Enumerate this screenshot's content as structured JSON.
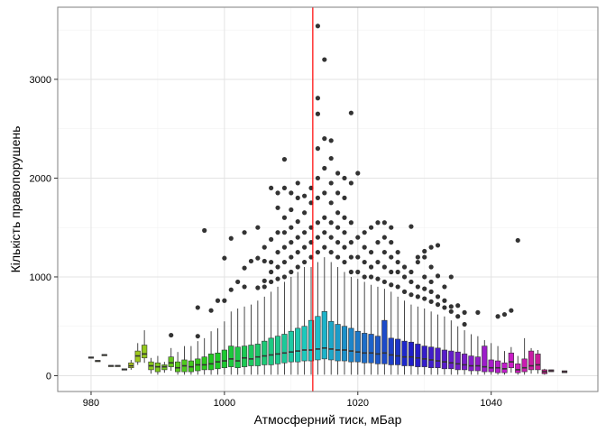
{
  "chart_data": {
    "type": "boxplot",
    "xlabel": "Атмосферний тиск, мБар",
    "ylabel": "Кількість правопорушень",
    "xlim": [
      975,
      1056
    ],
    "ylim": [
      -160,
      3730
    ],
    "x_ticks": [
      980,
      1000,
      1020,
      1040
    ],
    "y_ticks": [
      0,
      1000,
      2000,
      3000
    ],
    "grid": true,
    "legend": "none",
    "reference_line": {
      "x": 1013.25,
      "color": "#ff0000"
    },
    "colors": {
      "box_start": "#c89a00",
      "box_mid": "#00b2c8",
      "box_end": "#ff63b4"
    },
    "boxes": [
      {
        "x": 980,
        "q1": 180,
        "median": 185,
        "q3": 190,
        "lo": 180,
        "hi": 190
      },
      {
        "x": 981,
        "q1": 145,
        "median": 150,
        "q3": 155,
        "lo": 145,
        "hi": 155
      },
      {
        "x": 982,
        "q1": 205,
        "median": 210,
        "q3": 215,
        "lo": 205,
        "hi": 215
      },
      {
        "x": 983,
        "q1": 95,
        "median": 100,
        "q3": 105,
        "lo": 95,
        "hi": 105
      },
      {
        "x": 984,
        "q1": 95,
        "median": 100,
        "q3": 105,
        "lo": 95,
        "hi": 105
      },
      {
        "x": 985,
        "q1": 60,
        "median": 65,
        "q3": 70,
        "lo": 60,
        "hi": 70
      },
      {
        "x": 986,
        "q1": 80,
        "median": 100,
        "q3": 130,
        "lo": 60,
        "hi": 160
      },
      {
        "x": 987,
        "q1": 140,
        "median": 200,
        "q3": 250,
        "lo": 110,
        "hi": 330
      },
      {
        "x": 988,
        "q1": 180,
        "median": 220,
        "q3": 310,
        "lo": 130,
        "hi": 460
      },
      {
        "x": 989,
        "q1": 60,
        "median": 100,
        "q3": 140,
        "lo": 20,
        "hi": 180
      },
      {
        "x": 990,
        "q1": 40,
        "median": 90,
        "q3": 130,
        "lo": 10,
        "hi": 200
      },
      {
        "x": 991,
        "q1": 60,
        "median": 90,
        "q3": 110,
        "lo": 30,
        "hi": 140
      },
      {
        "x": 992,
        "q1": 90,
        "median": 130,
        "q3": 190,
        "lo": 50,
        "hi": 280,
        "outliers": [
          410
        ]
      },
      {
        "x": 993,
        "q1": 40,
        "median": 80,
        "q3": 140,
        "lo": 10,
        "hi": 240
      },
      {
        "x": 994,
        "q1": 40,
        "median": 100,
        "q3": 160,
        "lo": 10,
        "hi": 300
      },
      {
        "x": 995,
        "q1": 40,
        "median": 90,
        "q3": 150,
        "lo": 10,
        "hi": 300
      },
      {
        "x": 996,
        "q1": 50,
        "median": 110,
        "q3": 170,
        "lo": 10,
        "hi": 350,
        "outliers": [
          400,
          690
        ]
      },
      {
        "x": 997,
        "q1": 60,
        "median": 110,
        "q3": 190,
        "lo": 10,
        "hi": 380,
        "outliers": [
          1470
        ]
      },
      {
        "x": 998,
        "q1": 60,
        "median": 120,
        "q3": 220,
        "lo": 10,
        "hi": 450,
        "outliers": [
          660
        ]
      },
      {
        "x": 999,
        "q1": 70,
        "median": 140,
        "q3": 230,
        "lo": 10,
        "hi": 480,
        "outliers": [
          760
        ]
      },
      {
        "x": 1000,
        "q1": 80,
        "median": 150,
        "q3": 260,
        "lo": 10,
        "hi": 550,
        "outliers": [
          760,
          1190
        ]
      },
      {
        "x": 1001,
        "q1": 90,
        "median": 170,
        "q3": 300,
        "lo": 10,
        "hi": 650,
        "outliers": [
          870,
          1390
        ]
      },
      {
        "x": 1002,
        "q1": 80,
        "median": 150,
        "q3": 290,
        "lo": 10,
        "hi": 680,
        "outliers": [
          950
        ]
      },
      {
        "x": 1003,
        "q1": 90,
        "median": 180,
        "q3": 300,
        "lo": 10,
        "hi": 700,
        "outliers": [
          900,
          1090,
          1450
        ]
      },
      {
        "x": 1004,
        "q1": 100,
        "median": 170,
        "q3": 310,
        "lo": 10,
        "hi": 720,
        "outliers": [
          1160
        ]
      },
      {
        "x": 1005,
        "q1": 100,
        "median": 190,
        "q3": 320,
        "lo": 10,
        "hi": 760,
        "outliers": [
          890,
          1190,
          1500
        ]
      },
      {
        "x": 1006,
        "q1": 110,
        "median": 200,
        "q3": 350,
        "lo": 10,
        "hi": 800,
        "outliers": [
          900,
          960,
          1160,
          1300
        ]
      },
      {
        "x": 1007,
        "q1": 110,
        "median": 210,
        "q3": 380,
        "lo": 10,
        "hi": 850,
        "outliers": [
          950,
          1050,
          1150,
          1380,
          1900
        ]
      },
      {
        "x": 1008,
        "q1": 120,
        "median": 220,
        "q3": 400,
        "lo": 10,
        "hi": 900,
        "outliers": [
          980,
          1100,
          1250,
          1450,
          1700,
          1850
        ]
      },
      {
        "x": 1009,
        "q1": 130,
        "median": 230,
        "q3": 420,
        "lo": 10,
        "hi": 950,
        "outliers": [
          1000,
          1150,
          1300,
          1450,
          1600,
          1900,
          2190
        ]
      },
      {
        "x": 1010,
        "q1": 140,
        "median": 240,
        "q3": 450,
        "lo": 10,
        "hi": 1000,
        "outliers": [
          1050,
          1200,
          1350,
          1500,
          1680,
          1850
        ]
      },
      {
        "x": 1011,
        "q1": 140,
        "median": 250,
        "q3": 480,
        "lo": 10,
        "hi": 1050,
        "outliers": [
          1100,
          1250,
          1400,
          1560,
          1800,
          1950
        ]
      },
      {
        "x": 1012,
        "q1": 150,
        "median": 260,
        "q3": 500,
        "lo": 10,
        "hi": 1100,
        "outliers": [
          1150,
          1300,
          1450,
          1650,
          1820
        ]
      },
      {
        "x": 1013,
        "q1": 150,
        "median": 260,
        "q3": 560,
        "lo": 10,
        "hi": 1100,
        "outliers": [
          1200,
          1350,
          1500,
          1750,
          1900
        ]
      },
      {
        "x": 1014,
        "q1": 160,
        "median": 270,
        "q3": 600,
        "lo": 10,
        "hi": 1150,
        "outliers": [
          1250,
          1400,
          1550,
          1800,
          2000,
          2300,
          2650,
          2810,
          3540
        ]
      },
      {
        "x": 1015,
        "q1": 170,
        "median": 280,
        "q3": 650,
        "lo": 10,
        "hi": 1200,
        "outliers": [
          1300,
          1450,
          1600,
          1850,
          2100,
          2400,
          3200
        ]
      },
      {
        "x": 1016,
        "q1": 160,
        "median": 270,
        "q3": 550,
        "lo": 10,
        "hi": 1150,
        "outliers": [
          1250,
          1400,
          1550,
          1750,
          1950,
          2200,
          2380
        ]
      },
      {
        "x": 1017,
        "q1": 150,
        "median": 260,
        "q3": 520,
        "lo": 10,
        "hi": 1100,
        "outliers": [
          1200,
          1350,
          1500,
          1650,
          1850,
          2050
        ]
      },
      {
        "x": 1018,
        "q1": 150,
        "median": 260,
        "q3": 500,
        "lo": 10,
        "hi": 1050,
        "outliers": [
          1150,
          1300,
          1450,
          1600,
          1800,
          2000
        ]
      },
      {
        "x": 1019,
        "q1": 140,
        "median": 250,
        "q3": 480,
        "lo": 10,
        "hi": 1000,
        "outliers": [
          1050,
          1200,
          1350,
          1550,
          1950,
          2660
        ]
      },
      {
        "x": 1020,
        "q1": 140,
        "median": 240,
        "q3": 450,
        "lo": 10,
        "hi": 980,
        "outliers": [
          1050,
          1200,
          1400,
          2050
        ]
      },
      {
        "x": 1021,
        "q1": 130,
        "median": 230,
        "q3": 430,
        "lo": 10,
        "hi": 950,
        "outliers": [
          1000,
          1150,
          1300,
          1450
        ]
      },
      {
        "x": 1022,
        "q1": 130,
        "median": 230,
        "q3": 420,
        "lo": 10,
        "hi": 920,
        "outliers": [
          1000,
          1100,
          1250,
          1500
        ]
      },
      {
        "x": 1023,
        "q1": 120,
        "median": 220,
        "q3": 400,
        "lo": 10,
        "hi": 900,
        "outliers": [
          980,
          1150,
          1350,
          1550
        ]
      },
      {
        "x": 1024,
        "q1": 120,
        "median": 230,
        "q3": 560,
        "lo": 10,
        "hi": 880,
        "outliers": [
          950,
          1100,
          1250,
          1400,
          1550
        ]
      },
      {
        "x": 1025,
        "q1": 110,
        "median": 210,
        "q3": 380,
        "lo": 10,
        "hi": 850,
        "outliers": [
          920,
          1050,
          1200,
          1350,
          1500
        ]
      },
      {
        "x": 1026,
        "q1": 110,
        "median": 200,
        "q3": 370,
        "lo": 10,
        "hi": 800,
        "outliers": [
          900,
          1050,
          1150,
          1250
        ]
      },
      {
        "x": 1027,
        "q1": 100,
        "median": 190,
        "q3": 350,
        "lo": 10,
        "hi": 760,
        "outliers": [
          850,
          1000,
          1100
        ]
      },
      {
        "x": 1028,
        "q1": 100,
        "median": 190,
        "q3": 340,
        "lo": 10,
        "hi": 720,
        "outliers": [
          820,
          950,
          1050,
          1510
        ]
      },
      {
        "x": 1029,
        "q1": 90,
        "median": 180,
        "q3": 320,
        "lo": 10,
        "hi": 700,
        "outliers": [
          800,
          900,
          1150,
          1200
        ]
      },
      {
        "x": 1030,
        "q1": 90,
        "median": 170,
        "q3": 300,
        "lo": 10,
        "hi": 680,
        "outliers": [
          780,
          880,
          1000,
          1200,
          1260
        ]
      },
      {
        "x": 1031,
        "q1": 80,
        "median": 160,
        "q3": 290,
        "lo": 10,
        "hi": 650,
        "outliers": [
          750,
          850,
          950,
          1100,
          1300
        ]
      },
      {
        "x": 1032,
        "q1": 80,
        "median": 150,
        "q3": 280,
        "lo": 10,
        "hi": 620,
        "outliers": [
          720,
          800,
          1010,
          1320
        ]
      },
      {
        "x": 1033,
        "q1": 70,
        "median": 140,
        "q3": 260,
        "lo": 10,
        "hi": 600,
        "outliers": [
          690,
          760,
          900
        ]
      },
      {
        "x": 1034,
        "q1": 70,
        "median": 130,
        "q3": 250,
        "lo": 10,
        "hi": 560,
        "outliers": [
          650,
          700,
          1000
        ]
      },
      {
        "x": 1035,
        "q1": 60,
        "median": 120,
        "q3": 240,
        "lo": 10,
        "hi": 500,
        "outliers": [
          600,
          710
        ]
      },
      {
        "x": 1036,
        "q1": 60,
        "median": 110,
        "q3": 220,
        "lo": 10,
        "hi": 460,
        "outliers": [
          520,
          640
        ]
      },
      {
        "x": 1037,
        "q1": 50,
        "median": 100,
        "q3": 200,
        "lo": 10,
        "hi": 420
      },
      {
        "x": 1038,
        "q1": 50,
        "median": 100,
        "q3": 190,
        "lo": 10,
        "hi": 400,
        "outliers": [
          640
        ]
      },
      {
        "x": 1039,
        "q1": 40,
        "median": 90,
        "q3": 300,
        "lo": 10,
        "hi": 360
      },
      {
        "x": 1040,
        "q1": 40,
        "median": 80,
        "q3": 160,
        "lo": 10,
        "hi": 330
      },
      {
        "x": 1041,
        "q1": 30,
        "median": 80,
        "q3": 150,
        "lo": 10,
        "hi": 300,
        "outliers": [
          600
        ]
      },
      {
        "x": 1042,
        "q1": 30,
        "median": 70,
        "q3": 130,
        "lo": 10,
        "hi": 250,
        "outliers": [
          620
        ]
      },
      {
        "x": 1043,
        "q1": 80,
        "median": 140,
        "q3": 230,
        "lo": 30,
        "hi": 290,
        "outliers": [
          660
        ]
      },
      {
        "x": 1044,
        "q1": 30,
        "median": 60,
        "q3": 120,
        "lo": 10,
        "hi": 200,
        "outliers": [
          1370
        ]
      },
      {
        "x": 1045,
        "q1": 40,
        "median": 80,
        "q3": 170,
        "lo": 10,
        "hi": 380
      },
      {
        "x": 1046,
        "q1": 60,
        "median": 100,
        "q3": 250,
        "lo": 20,
        "hi": 280
      },
      {
        "x": 1047,
        "q1": 60,
        "median": 110,
        "q3": 220,
        "lo": 20,
        "hi": 260
      },
      {
        "x": 1048,
        "q1": 20,
        "median": 40,
        "q3": 60,
        "lo": 10,
        "hi": 70
      },
      {
        "x": 1049,
        "q1": 40,
        "median": 50,
        "q3": 60,
        "lo": 40,
        "hi": 60
      },
      {
        "x": 1051,
        "q1": 30,
        "median": 40,
        "q3": 50,
        "lo": 30,
        "hi": 50
      }
    ]
  }
}
